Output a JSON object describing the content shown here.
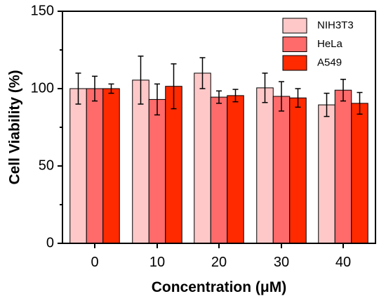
{
  "chart_data": {
    "type": "bar",
    "title": "",
    "xlabel": "Concentration (μM)",
    "ylabel": "Cell Viability (%)",
    "ylim": [
      0,
      150
    ],
    "yticks": [
      0,
      50,
      100,
      150
    ],
    "categories": [
      "0",
      "10",
      "20",
      "30",
      "40"
    ],
    "grid": false,
    "legend_position": "top-right",
    "series": [
      {
        "name": "NIH3T3",
        "color": "#ffc8c8",
        "values": [
          100,
          105.5,
          110,
          100.5,
          89.5
        ],
        "errors": [
          10,
          15.5,
          10,
          9.5,
          7.5
        ]
      },
      {
        "name": "HeLa",
        "color": "#ff6a6a",
        "values": [
          100,
          93,
          94.5,
          95,
          99
        ],
        "errors": [
          8,
          10,
          4,
          9.5,
          7
        ]
      },
      {
        "name": "A549",
        "color": "#ff2a00",
        "values": [
          100,
          101.5,
          95.5,
          94,
          90.5
        ],
        "errors": [
          3,
          14.5,
          4,
          6,
          7
        ]
      }
    ]
  }
}
